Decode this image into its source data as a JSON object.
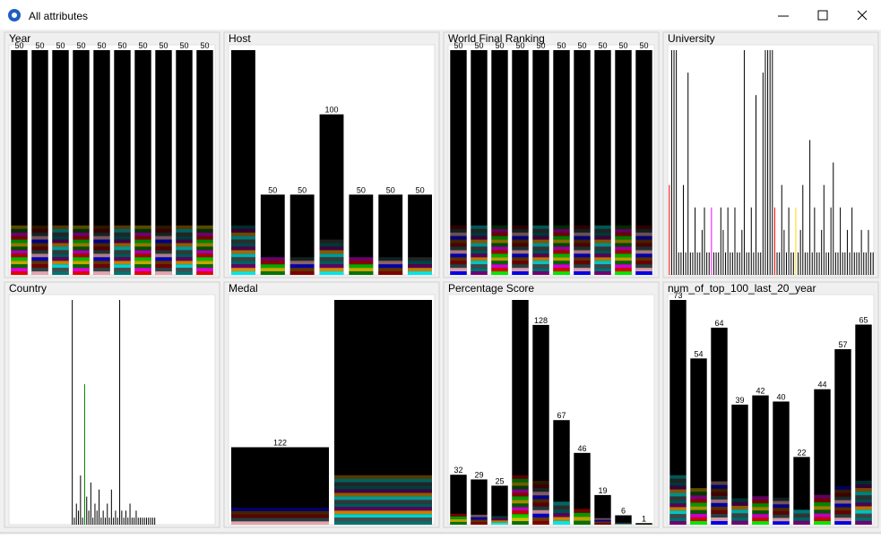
{
  "window": {
    "title": "All attributes"
  },
  "panels": [
    {
      "title": "Year",
      "type": "bar",
      "values": [
        50,
        50,
        50,
        50,
        50,
        50,
        50,
        50,
        50,
        50
      ]
    },
    {
      "title": "Host",
      "type": "bar",
      "values": [
        140,
        50,
        50,
        100,
        50,
        50,
        50
      ],
      "value_labels": [
        null,
        "50",
        "50",
        "100",
        "50",
        "50",
        "50"
      ]
    },
    {
      "title": "World Final Ranking",
      "type": "bar",
      "values": [
        50,
        50,
        50,
        50,
        50,
        50,
        50,
        50,
        50,
        50
      ]
    },
    {
      "title": "University",
      "type": "lines",
      "values": [
        4,
        10,
        10,
        10,
        1,
        1,
        4,
        1,
        9,
        1,
        1,
        3,
        1,
        1,
        2,
        3,
        1,
        1,
        3,
        1,
        1,
        1,
        3,
        2,
        1,
        3,
        1,
        1,
        3,
        1,
        1,
        2,
        10,
        1,
        1,
        3,
        1,
        8,
        1,
        1,
        9,
        10,
        10,
        10,
        10,
        3,
        1,
        1,
        4,
        2,
        1,
        3,
        1,
        1,
        3,
        1,
        2,
        4,
        1,
        1,
        6,
        1,
        3,
        1,
        1,
        2,
        4,
        1,
        1,
        3,
        5,
        1,
        1,
        3,
        1,
        1,
        2,
        1,
        3,
        1,
        1,
        1,
        2,
        1,
        1,
        2,
        1,
        1
      ]
    },
    {
      "title": "Country",
      "type": "lines",
      "values": [
        0,
        0,
        0,
        0,
        0,
        0,
        0,
        0,
        0,
        0,
        0,
        0,
        0,
        0,
        0,
        0,
        0,
        0,
        0,
        0,
        0,
        0,
        0,
        0,
        0,
        0,
        0,
        0,
        0,
        0,
        32,
        1,
        3,
        2,
        7,
        1,
        20,
        4,
        2,
        6,
        1,
        3,
        2,
        5,
        1,
        2,
        1,
        3,
        1,
        5,
        1,
        2,
        1,
        32,
        2,
        1,
        2,
        1,
        3,
        1,
        1,
        2,
        1,
        1,
        1,
        1,
        1,
        1,
        1,
        1,
        1,
        0,
        0,
        0,
        0,
        0,
        0,
        0,
        0,
        0,
        0,
        0,
        0,
        0,
        0,
        0,
        0,
        0,
        0,
        0,
        0,
        0,
        0,
        0,
        0,
        0,
        0,
        0,
        0,
        0
      ]
    },
    {
      "title": "Medal",
      "type": "bar",
      "values": [
        122,
        354
      ],
      "value_labels": [
        "122",
        null
      ]
    },
    {
      "title": "Percentage Score",
      "type": "bar",
      "values": [
        32,
        29,
        25,
        144,
        128,
        67,
        46,
        19,
        6,
        1
      ],
      "value_labels": [
        "32",
        "29",
        "25",
        null,
        "128",
        "67",
        "46",
        "19",
        "6",
        "1"
      ]
    },
    {
      "title": "num_of_top_100_last_20_year",
      "type": "bar",
      "values": [
        73,
        54,
        64,
        39,
        42,
        40,
        22,
        44,
        57,
        65
      ]
    }
  ]
}
